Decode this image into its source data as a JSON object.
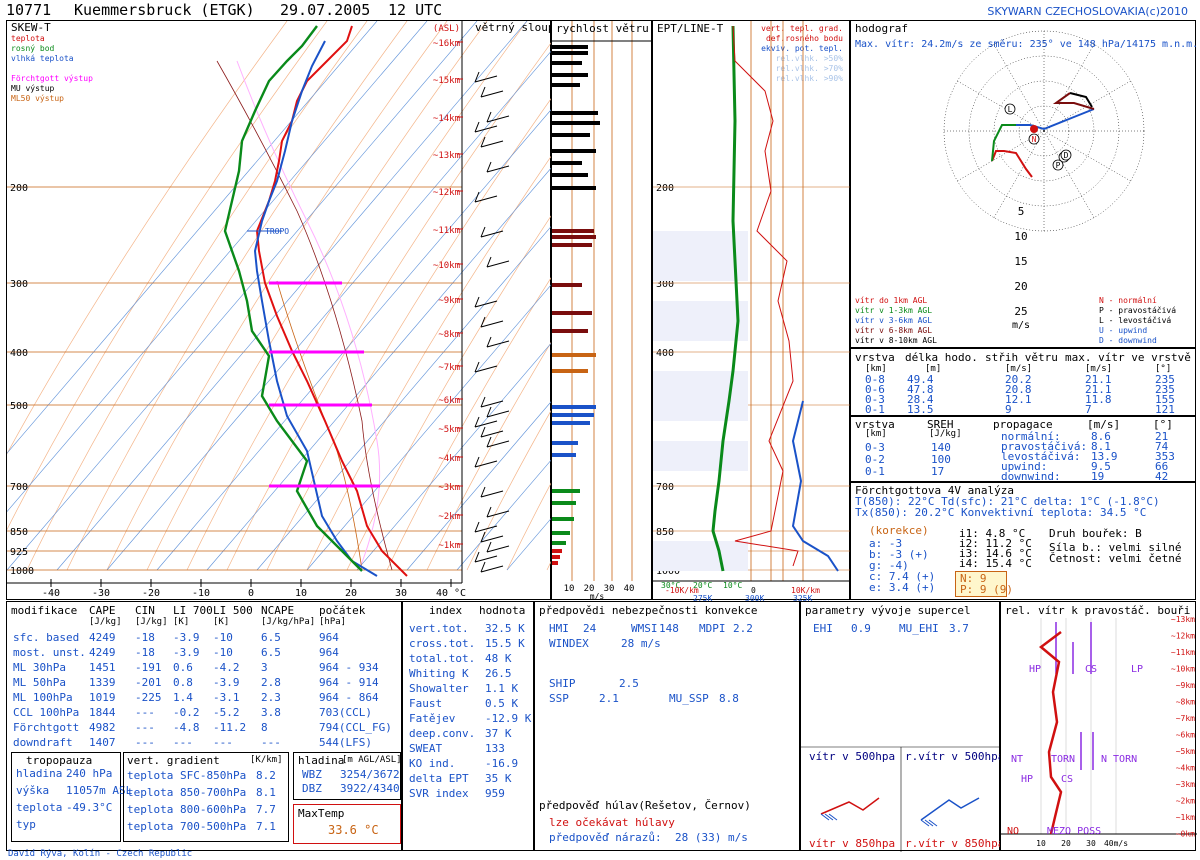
{
  "header": {
    "station": "10771",
    "name": "Kuemmersbruck (ETGK)",
    "date": "29.07.2005",
    "time": "12 UTC",
    "credit": "SKYWARN CZECHOSLOVAKIA(c)2010"
  },
  "colors": {
    "temperature": "#e01010",
    "dewpoint": "#0a8a1a",
    "wetbulb": "#1a52c8",
    "forchtgott": "#ff00ff",
    "mu": "#000000",
    "ml50": "#c86414",
    "background": "#ffffff"
  },
  "skewt": {
    "title": "SKEW-T",
    "legend": [
      "teplota",
      "rosný bod",
      "vlhká teplota",
      "Förchtgott výstup",
      "MU výstup",
      "ML50 výstup"
    ],
    "asl_label": "(ASL)",
    "wind_col_title": "větrný sloup",
    "tropo_label": "TROPO",
    "pressure_labels": [
      "200",
      "300",
      "400",
      "500",
      "700",
      "850",
      "925",
      "1000"
    ],
    "km_labels": [
      "~16km",
      "~15km",
      "~14km",
      "~13km",
      "~12km",
      "~11km",
      "~10km",
      "~9km",
      "~8km",
      "~7km",
      "~6km",
      "~5km",
      "~4km",
      "~3km",
      "~2km",
      "~1km"
    ],
    "temp_labels": [
      "-40",
      "-30",
      "-20",
      "-10",
      "0",
      "10",
      "20",
      "30",
      "40 °C"
    ]
  },
  "speed": {
    "title": "rychlost větru",
    "axis_labels": [
      "10",
      "20",
      "30",
      "40"
    ],
    "unit": "m/s"
  },
  "ept": {
    "title": "EPT/LINE-T",
    "legend": [
      "vert. tepl. grad.",
      "def.rosného bodu",
      "ekviv. pot. tepl.",
      "rel.vlhk. >50%",
      "rel.vlhk. >70%",
      "rel.vlhk. >90%"
    ],
    "pressure_labels": [
      "200",
      "300",
      "400",
      "500",
      "700",
      "850",
      "925",
      "1000"
    ],
    "bottom_labels": [
      "30°C",
      "20°C",
      "10°C",
      "0",
      "10K/km",
      "275K",
      "300K",
      "325K",
      "-10K/km"
    ]
  },
  "hodo": {
    "title": "hodograf",
    "maxwind": "Max. vítr: 24.2m/s ze směru: 235° ve 148 hPa/14175 m.n.m.",
    "ring_labels": [
      "5",
      "10",
      "15",
      "20",
      "25"
    ],
    "unit": "m/s",
    "legend_left": [
      "vítr do 1km AGL",
      "vítr v 1-3km AGL",
      "vítr v 3-6km AGL",
      "vítr v 6-8km AGL",
      "vítr v 8-10km AGL"
    ],
    "legend_right": [
      "N - normální",
      "P - pravostáčivá",
      "L - levostáčivá",
      "U - upwind",
      "D - downwind"
    ]
  },
  "layers": {
    "headers": [
      "vrstva",
      "délka hodo.",
      "střih větru",
      "max. vítr ve vrstvě"
    ],
    "units": [
      "[km]",
      "[m]",
      "[m/s]",
      "[m/s]",
      "[°]"
    ],
    "rows": [
      [
        "0-8",
        "49.4",
        "20.2",
        "21.1",
        "235"
      ],
      [
        "0-6",
        "47.8",
        "20.8",
        "21.1",
        "235"
      ],
      [
        "0-3",
        "28.4",
        "12.1",
        "11.8",
        "155"
      ],
      [
        "0-1",
        "13.5",
        "9",
        "7",
        "121"
      ]
    ]
  },
  "sreh": {
    "headers": [
      "vrstva",
      "SREH",
      "propagace",
      "[m/s]",
      "[°]"
    ],
    "units": [
      "[km]",
      "[J/kg]"
    ],
    "rows": [
      [
        "0-3",
        "140"
      ],
      [
        "0-2",
        "100"
      ],
      [
        "0-1",
        "17"
      ]
    ],
    "prop": [
      [
        "normální:",
        "8.6",
        "21"
      ],
      [
        "pravostáčivá:",
        "8.1",
        "74"
      ],
      [
        "levostáčivá:",
        "13.9",
        "353"
      ],
      [
        "upwind:",
        "9.5",
        "66"
      ],
      [
        "downwind:",
        "19",
        "42"
      ]
    ]
  },
  "fourv": {
    "title": "Förchtgottova 4V analýza",
    "line1": "T(850): 22°C  Td(sfc): 21°C  delta: 1°C (-1.8°C)",
    "line2": "Tx(850): 20.2°C    Konvektivní teplota: 34.5 °C",
    "korekce": "(korekce)",
    "abc": [
      "a: -3",
      "b: -3 (+)",
      "g: -4)",
      "c: 7.4 (+)",
      "e: 3.4 (+)"
    ],
    "i": [
      "i1: 4.8 °C",
      "i2: 11.2 °C",
      "i3: 14.6 °C",
      "i4: 15.4 °C"
    ],
    "n": "N: 9",
    "p": "P: 9 (9)",
    "druh": "Druh bouřek: B",
    "sila": "Síla b.: velmi silné",
    "cetnost": "Četnost: velmi četné"
  },
  "params": {
    "headers": [
      "modifikace",
      "CAPE",
      "CIN",
      "LI 700",
      "LI 500",
      "NCAPE",
      "počátek"
    ],
    "units": [
      "[J/kg]",
      "[J/kg]",
      "[K]",
      "[K]",
      "[J/kg/hPa]",
      "[hPa]"
    ],
    "rows": [
      [
        "sfc. based",
        "4249",
        "-18",
        "-3.9",
        "-10",
        "6.5",
        "964"
      ],
      [
        "most. unst.",
        "4249",
        "-18",
        "-3.9",
        "-10",
        "6.5",
        "964"
      ],
      [
        "ML 30hPa",
        "1451",
        "-191",
        "0.6",
        "-4.2",
        "3",
        "964 - 934"
      ],
      [
        "ML 50hPa",
        "1339",
        "-201",
        "0.8",
        "-3.9",
        "2.8",
        "964 - 914"
      ],
      [
        "ML 100hPa",
        "1019",
        "-225",
        "1.4",
        "-3.1",
        "2.3",
        "964 - 864"
      ],
      [
        "CCL 100hPa",
        "1844",
        "---",
        "-0.2",
        "-5.2",
        "3.8",
        "703(CCL)"
      ],
      [
        "Förchtgott",
        "4982",
        "---",
        "-4.8",
        "-11.2",
        "8",
        "794(CCL_FG)"
      ],
      [
        "downdraft",
        "1407",
        "---",
        "---",
        "---",
        "---",
        "544(LFS)"
      ]
    ]
  },
  "tropo": {
    "title": "tropopauza",
    "rows": [
      [
        "hladina",
        "240 hPa"
      ],
      [
        "výška",
        "11057m ASL"
      ],
      [
        "teplota",
        "-49.3°C"
      ],
      [
        "typ",
        ""
      ]
    ]
  },
  "vgrad": {
    "title": "vert. gradient",
    "unit": "[K/km]",
    "rows": [
      [
        "teplota SFC-850hPa",
        "8.2"
      ],
      [
        "teplota 850-700hPa",
        "8.1"
      ],
      [
        "teplota 800-600hPa",
        "7.7"
      ],
      [
        "teplota 700-500hPa",
        "7.1"
      ]
    ]
  },
  "hladina": {
    "title": "hladina",
    "unit": "[m AGL/ASL]",
    "rows": [
      [
        "WBZ",
        "3254/3672"
      ],
      [
        "DBZ",
        "3922/4340"
      ]
    ]
  },
  "maxtemp": {
    "title": "MaxTemp",
    "value": "33.6 °C"
  },
  "index": {
    "headers": [
      "index",
      "hodnota"
    ],
    "rows": [
      [
        "vert.tot.",
        "32.5 K"
      ],
      [
        "cross.tot.",
        "15.5 K"
      ],
      [
        "total.tot.",
        "48 K"
      ],
      [
        "Whiting K",
        "26.5"
      ],
      [
        "Showalter",
        "1.1 K"
      ],
      [
        "Faust",
        "0.5 K"
      ],
      [
        "Fatějev",
        "-12.9 K"
      ],
      [
        "deep.conv.",
        "37 K"
      ],
      [
        "SWEAT",
        "133"
      ],
      [
        "KO ind.",
        "-16.9"
      ],
      [
        "delta EPT",
        "35 K"
      ],
      [
        "SVR index",
        "959"
      ]
    ]
  },
  "forecast": {
    "title": "předpovědi nebezpečnosti konvekce",
    "hmi": "HMI",
    "hmi_v": "24",
    "wmsi": "WMSI",
    "wmsi_v": "148",
    "mdpi": "MDPI",
    "mdpi_v": "2.2",
    "windex": "WINDEX",
    "windex_v": "28 m/s",
    "ship": "SHIP",
    "ship_v": "2.5",
    "ssp": "SSP",
    "ssp_v": "2.1",
    "mussp": "MU_SSP",
    "mussp_v": "8.8",
    "hail_title": "předpověď húlav(Rešetov, Černov)",
    "hail_line": "lze očekávat húlavy",
    "gust": "předpověď nárazů:",
    "gust_v": "28 (33) m/s"
  },
  "supercell": {
    "title": "parametry vývoje supercel",
    "ehi": "EHI",
    "ehi_v": "0.9",
    "muehi": "MU_EHI",
    "muehi_v": "3.7",
    "w500": "vítr v 500hpa",
    "rw500": "r.vítr v 500hpa",
    "w850": "vítr v 850hpa",
    "rw850": "r.vítr v 850hpa"
  },
  "relwind": {
    "title": "rel. vítr k pravostáč. bouři",
    "km_labels": [
      "~13km",
      "~12km",
      "~11km",
      "~10km",
      "~9km",
      "~8km",
      "~7km",
      "~6km",
      "~5km",
      "~4km",
      "~3km",
      "~2km",
      "~1km",
      "~0km"
    ],
    "labels": [
      "HP",
      "CS",
      "LP",
      "NT",
      "TORN",
      "N TORN",
      "HP",
      "CS",
      "NO",
      "MEZO POSS"
    ],
    "axis": [
      "10",
      "20",
      "30",
      "40m/s"
    ]
  },
  "footer": "David Rýva, Kolín - Czech Republic"
}
